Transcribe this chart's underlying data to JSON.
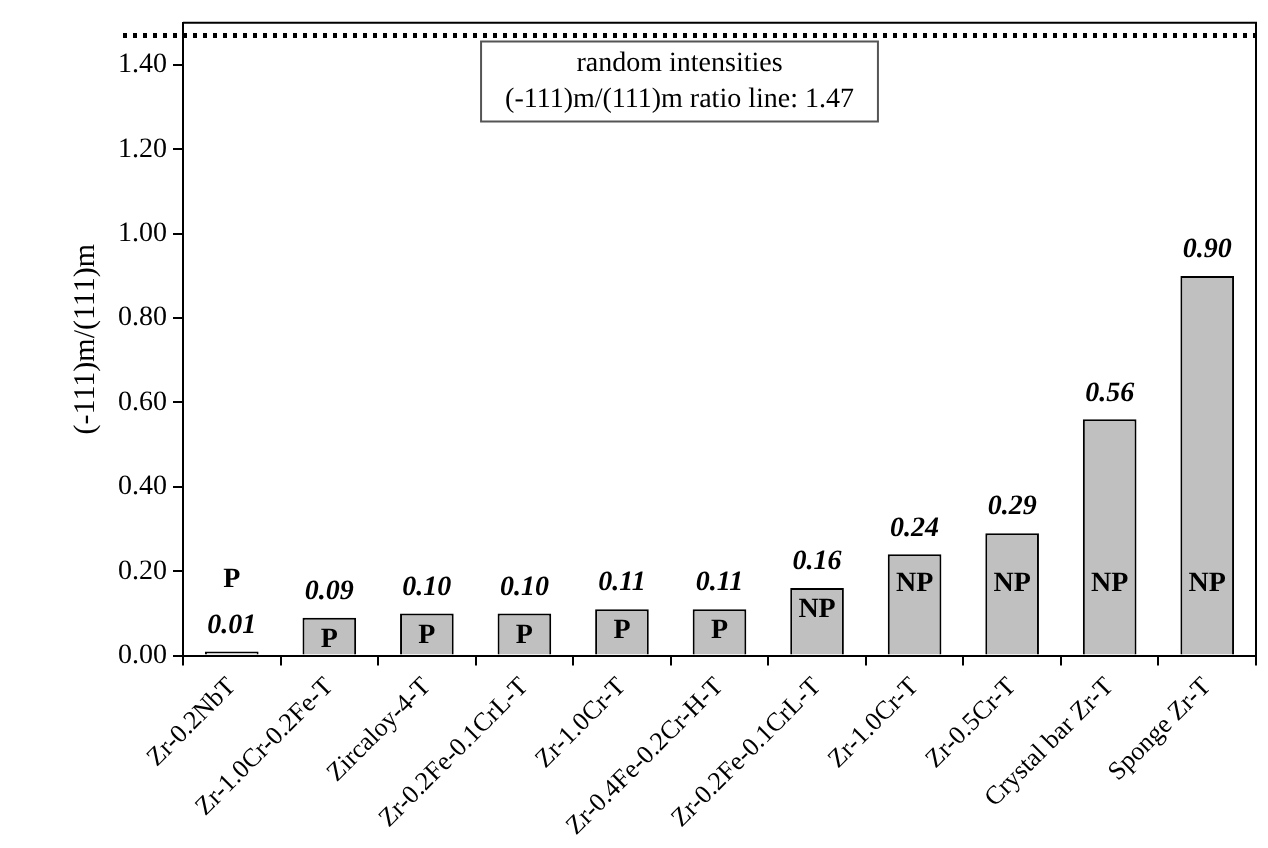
{
  "chart_data": {
    "type": "bar",
    "ylabel": "(-111)m/(111)m",
    "categories": [
      "Zr-0.2NbT",
      "Zr-1.0Cr-0.2Fe-T",
      "Zircaloy-4-T",
      "Zr-0.2Fe-0.1CrL-T",
      "Zr-1.0Cr-T",
      "Zr-0.4Fe-0.2Cr-H-T",
      "Zr-0.2Fe-0.1CrL-T",
      "Zr-1.0Cr-T",
      "Zr-0.5Cr-T",
      "Crystal bar Zr-T",
      "Sponge Zr-T"
    ],
    "values": [
      0.01,
      0.09,
      0.1,
      0.1,
      0.11,
      0.11,
      0.16,
      0.24,
      0.29,
      0.56,
      0.9
    ],
    "value_labels": [
      "0.01",
      "0.09",
      "0.10",
      "0.10",
      "0.11",
      "0.11",
      "0.16",
      "0.24",
      "0.29",
      "0.56",
      "0.90"
    ],
    "color": "#c0c0c0",
    "ylim": [
      0,
      1.5
    ],
    "yticks": [
      {
        "value": 0,
        "label": "0.00"
      },
      {
        "value": 0.2,
        "label": "0.20"
      },
      {
        "value": 0.4,
        "label": "0.40"
      },
      {
        "value": 0.6,
        "label": "0.60"
      },
      {
        "value": 0.8,
        "label": "0.80"
      },
      {
        "value": 1.0,
        "label": "1.00"
      },
      {
        "value": 1.2,
        "label": "1.20"
      },
      {
        "value": 1.4,
        "label": "1.40"
      }
    ],
    "grid": false,
    "legend": false,
    "ref_lines": [
      {
        "axis": "y",
        "value": 1.47,
        "label": "random intensities\n(-111)m/(111)m ratio line: 1.47",
        "line_style": "dotted",
        "color": "#000000"
      }
    ],
    "annotations": [
      "P",
      "P",
      "P",
      "P",
      "P",
      "P",
      "NP",
      "NP",
      "NP",
      "NP",
      "NP"
    ]
  }
}
